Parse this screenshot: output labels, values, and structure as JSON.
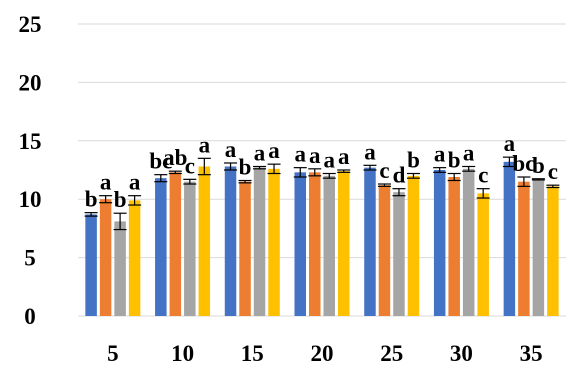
{
  "chart_data": {
    "type": "bar",
    "title": "",
    "xlabel": "",
    "ylabel": "",
    "categories": [
      "5",
      "10",
      "15",
      "20",
      "25",
      "30",
      "35"
    ],
    "y_ticks": [
      "0",
      "5",
      "10",
      "15",
      "20",
      "25"
    ],
    "ylim": [
      0,
      25
    ],
    "grid": true,
    "legend": "none",
    "series": [
      {
        "color": "#4472C4",
        "values": [
          8.7,
          11.8,
          12.8,
          12.3,
          12.7,
          12.5,
          13.2
        ],
        "errors": [
          0.15,
          0.3,
          0.3,
          0.4,
          0.2,
          0.2,
          0.4
        ],
        "sig": [
          "b",
          "bc",
          "a",
          "a",
          "a",
          "a",
          "a"
        ]
      },
      {
        "color": "#ED7D31",
        "values": [
          10.0,
          12.3,
          11.5,
          12.3,
          11.2,
          11.9,
          11.5
        ],
        "errors": [
          0.3,
          0.1,
          0.1,
          0.3,
          0.1,
          0.3,
          0.4
        ],
        "sig": [
          "a",
          "ab",
          "b",
          "a",
          "c",
          "b",
          "bc"
        ]
      },
      {
        "color": "#A5A5A5",
        "values": [
          8.1,
          11.5,
          12.7,
          12.0,
          10.6,
          12.6,
          11.7
        ],
        "errors": [
          0.7,
          0.2,
          0.1,
          0.2,
          0.3,
          0.2,
          0.05
        ],
        "sig": [
          "b",
          "c",
          "a",
          "a",
          "d",
          "a",
          "b"
        ]
      },
      {
        "color": "#FFC000",
        "values": [
          9.9,
          12.8,
          12.6,
          12.4,
          12.0,
          10.5,
          11.1
        ],
        "errors": [
          0.4,
          0.7,
          0.4,
          0.1,
          0.2,
          0.4,
          0.1
        ],
        "sig": [
          "a",
          "a",
          "a",
          "a",
          "b",
          "c",
          "c"
        ]
      }
    ]
  }
}
